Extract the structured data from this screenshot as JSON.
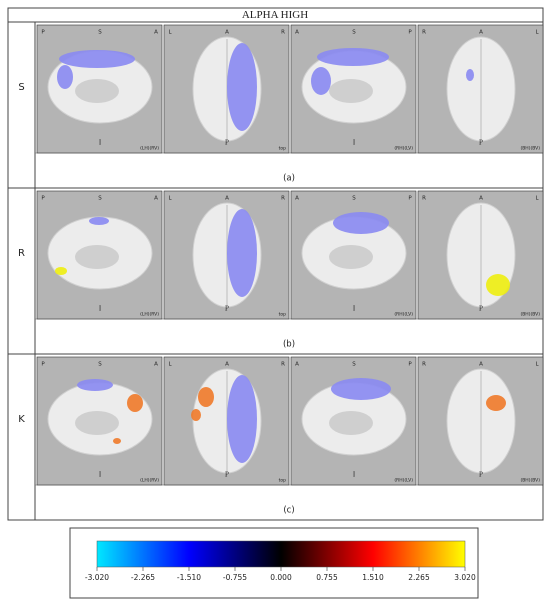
{
  "header": {
    "title": "ALPHA HIGH"
  },
  "panels": [
    {
      "top": [
        "P",
        "S",
        "A"
      ],
      "bottom": "I",
      "view": "(LH)(RV)"
    },
    {
      "top": [
        "L",
        "A",
        "R"
      ],
      "bottom": "P",
      "view": "top"
    },
    {
      "top": [
        "A",
        "S",
        "P"
      ],
      "bottom": "I",
      "view": "(RH)(LV)"
    },
    {
      "top": [
        "R",
        "A",
        "L"
      ],
      "bottom": "P",
      "view": "(BH)(BV)"
    }
  ],
  "rows": [
    {
      "label": "S",
      "caption": "(a)"
    },
    {
      "label": "R",
      "caption": "(b)"
    },
    {
      "label": "K",
      "caption": "(c)"
    }
  ],
  "colorbar": {
    "range": [
      -3.02,
      3.02
    ],
    "colors": [
      "#00e8ff",
      "#0000ff",
      "#000000",
      "#ff0000",
      "#ffff00"
    ],
    "ticks": [
      {
        "value": -3.02,
        "label": "-3.020"
      },
      {
        "value": -2.265,
        "label": "-2.265"
      },
      {
        "value": -1.51,
        "label": "-1.510"
      },
      {
        "value": -0.755,
        "label": "-0.755"
      },
      {
        "value": 0,
        "label": "0.000"
      },
      {
        "value": 0.755,
        "label": "0.755"
      },
      {
        "value": 1.51,
        "label": "1.510"
      },
      {
        "value": 2.265,
        "label": "2.265"
      },
      {
        "value": 3.02,
        "label": "3.020"
      }
    ]
  }
}
